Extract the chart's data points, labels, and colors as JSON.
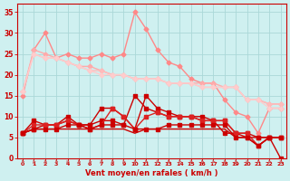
{
  "x": [
    0,
    1,
    2,
    3,
    4,
    5,
    6,
    7,
    8,
    9,
    10,
    11,
    12,
    13,
    14,
    15,
    16,
    17,
    18,
    19,
    20,
    21,
    22,
    23
  ],
  "background_color": "#cff0f0",
  "grid_color": "#aad8d8",
  "xlabel": "Vent moyen/en rafales ( km/h )",
  "xlabel_color": "#cc0000",
  "tick_color": "#cc0000",
  "ylim": [
    0,
    37
  ],
  "yticks": [
    0,
    5,
    10,
    15,
    20,
    25,
    30,
    35
  ],
  "series": [
    {
      "y": [
        15,
        26,
        30,
        24,
        25,
        24,
        24,
        25,
        24,
        25,
        35,
        31,
        26,
        23,
        22,
        19,
        18,
        18,
        14,
        11,
        10,
        6,
        12,
        12
      ],
      "color": "#ff8888",
      "marker": "D",
      "markersize": 2.5,
      "lw": 1.0
    },
    {
      "y": [
        16,
        26,
        25,
        24,
        23,
        22,
        22,
        21,
        20,
        20,
        19,
        19,
        19,
        18,
        18,
        18,
        18,
        18,
        17,
        17,
        14,
        14,
        13,
        13
      ],
      "color": "#ffaaaa",
      "marker": "D",
      "markersize": 2.5,
      "lw": 1.0
    },
    {
      "y": [
        16,
        25,
        24,
        24,
        23,
        22,
        21,
        21,
        20,
        20,
        19,
        19,
        19,
        18,
        18,
        18,
        17,
        17,
        17,
        17,
        14,
        14,
        13,
        13
      ],
      "color": "#ffbbbb",
      "marker": "D",
      "markersize": 2.5,
      "lw": 1.0
    },
    {
      "y": [
        16,
        25,
        24,
        24,
        23,
        22,
        21,
        20,
        20,
        20,
        19,
        19,
        19,
        18,
        18,
        18,
        17,
        17,
        17,
        17,
        14,
        14,
        12,
        12
      ],
      "color": "#ffcccc",
      "marker": "D",
      "markersize": 2.5,
      "lw": 1.0
    },
    {
      "y": [
        6,
        7,
        8,
        8,
        9,
        8,
        8,
        9,
        9,
        8,
        15,
        12,
        11,
        10,
        10,
        10,
        9,
        9,
        6,
        6,
        5,
        5,
        5,
        0
      ],
      "color": "#cc0000",
      "marker": "s",
      "markersize": 2.5,
      "lw": 1.0
    },
    {
      "y": [
        6,
        9,
        8,
        8,
        10,
        8,
        8,
        12,
        12,
        10,
        7,
        15,
        12,
        11,
        10,
        10,
        10,
        9,
        9,
        6,
        6,
        5,
        5,
        5
      ],
      "color": "#cc0000",
      "marker": "s",
      "markersize": 2.5,
      "lw": 1.0
    },
    {
      "y": [
        6,
        8,
        8,
        8,
        9,
        8,
        7,
        8,
        12,
        10,
        7,
        10,
        11,
        10,
        10,
        10,
        9,
        9,
        9,
        6,
        6,
        3,
        5,
        5
      ],
      "color": "#dd2222",
      "marker": "s",
      "markersize": 2.5,
      "lw": 1.0
    },
    {
      "y": [
        6,
        7,
        7,
        7,
        8,
        8,
        7,
        8,
        8,
        8,
        7,
        7,
        7,
        8,
        8,
        8,
        8,
        8,
        8,
        5,
        5,
        3,
        5,
        5
      ],
      "color": "#cc0000",
      "marker": "s",
      "markersize": 2.5,
      "lw": 1.0
    },
    {
      "y": [
        6,
        7,
        7,
        7,
        7,
        7,
        7,
        7,
        7,
        7,
        6,
        7,
        7,
        7,
        7,
        7,
        7,
        7,
        7,
        5,
        5,
        3,
        5,
        5
      ],
      "color": "#cc0000",
      "marker": null,
      "markersize": 0,
      "lw": 1.0
    }
  ],
  "arrow_color": "#cc6666",
  "arrow_angles_deg": [
    225,
    225,
    225,
    225,
    225,
    225,
    225,
    225,
    225,
    225,
    225,
    225,
    225,
    225,
    225,
    225,
    225,
    225,
    225,
    225,
    225,
    225,
    225,
    225
  ]
}
